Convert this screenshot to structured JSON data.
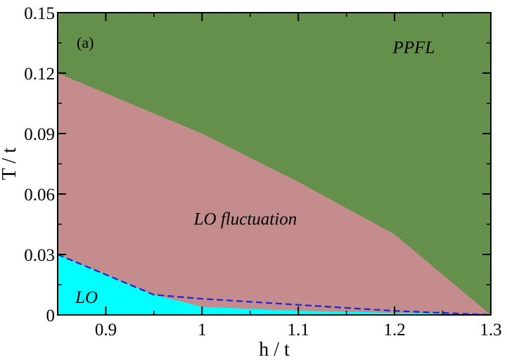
{
  "chart_data": {
    "type": "area",
    "panel_label": "(a)",
    "xlabel": "h / t",
    "ylabel": "T / t",
    "xlim": [
      0.85,
      1.3
    ],
    "ylim": [
      0,
      0.15
    ],
    "x_ticks": [
      0.9,
      1.0,
      1.1,
      1.2,
      1.3
    ],
    "x_tick_labels": [
      "0.9",
      "1",
      "1.1",
      "1.2",
      "1.3"
    ],
    "y_ticks": [
      0,
      0.03,
      0.06,
      0.09,
      0.12,
      0.15
    ],
    "y_tick_labels": [
      "0",
      "0.03",
      "0.06",
      "0.09",
      "0.12",
      "0.15"
    ],
    "grid": false,
    "legend": "none",
    "regions": [
      {
        "label": "PPFL",
        "color": "#6f9a55",
        "label_pos": [
          1.22,
          0.133
        ]
      },
      {
        "label": "LO fluctuation",
        "color": "#c48c8c",
        "label_pos": [
          1.045,
          0.048
        ]
      },
      {
        "label": "LO",
        "color": "#00ffff",
        "label_pos": [
          0.88,
          0.009
        ]
      }
    ],
    "boundaries": {
      "upper": {
        "x": [
          0.85,
          0.95,
          1.0,
          1.1,
          1.2,
          1.3
        ],
        "y": [
          0.12,
          0.1,
          0.09,
          0.066,
          0.04,
          0.0
        ]
      },
      "lower": {
        "x": [
          0.85,
          0.95,
          1.0,
          1.1,
          1.2,
          1.3
        ],
        "y": [
          0.03,
          0.01,
          0.004,
          0.002,
          0.001,
          0.0
        ]
      },
      "dashed": {
        "x": [
          0.85,
          0.95,
          1.0,
          1.1,
          1.2,
          1.3
        ],
        "y": [
          0.03,
          0.01,
          0.008,
          0.005,
          0.002,
          0.0
        ],
        "color": "#2222cc"
      }
    }
  }
}
